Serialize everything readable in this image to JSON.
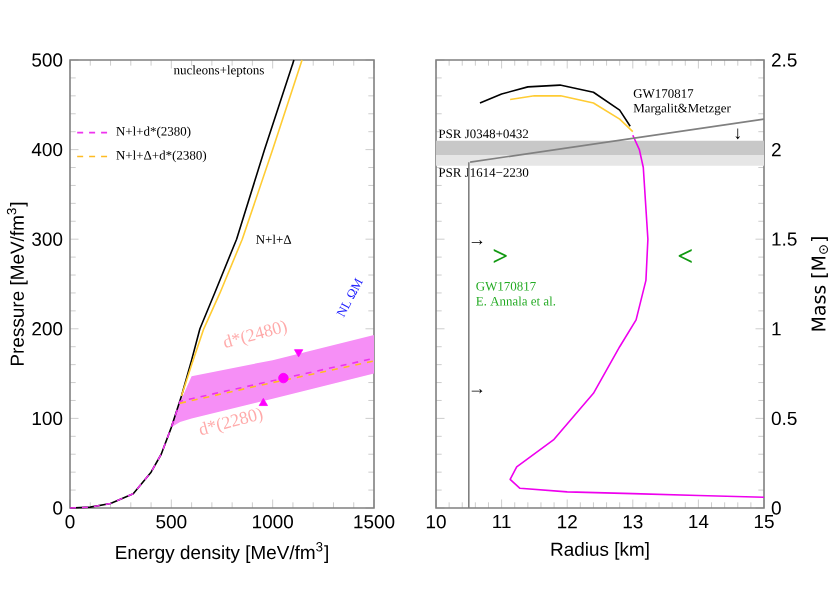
{
  "chart_data": [
    {
      "type": "line",
      "xlabel": "Energy density [MeV/fm$^{3}$]",
      "ylabel": "Pressure [MeV/fm$^{3}$]",
      "xlim": [
        0,
        1500
      ],
      "ylim": [
        0,
        500
      ],
      "xticks": [
        0,
        500,
        1000,
        1500
      ],
      "yticks": [
        0,
        100,
        200,
        300,
        400,
        500
      ],
      "legend": "top left",
      "series": [
        {
          "color": "#000000",
          "line_style": "solid",
          "x": [
            0,
            100,
            200,
            312,
            400,
            450,
            500,
            550,
            600,
            641,
            714,
            822,
            960,
            1105
          ],
          "values": [
            0,
            1,
            5,
            16,
            40,
            60,
            90,
            125,
            165,
            200,
            240,
            300,
            400,
            500
          ]
        },
        {
          "color": "#ffcc33",
          "line_style": "solid",
          "x": [
            550,
            600,
            660,
            740,
            850,
            1000,
            1145
          ],
          "values": [
            125,
            160,
            200,
            240,
            300,
            400,
            500
          ]
        },
        {
          "name": "N+l+d*(2380)",
          "color": "#ee33ee",
          "line_style": "dashed",
          "x": [
            0,
            100,
            200,
            312,
            400,
            450,
            500,
            543,
            600,
            1000,
            1500
          ],
          "values": [
            0,
            1,
            5,
            16,
            40,
            60,
            90,
            119,
            122,
            142,
            167
          ],
          "lower": [
            null,
            null,
            null,
            null,
            null,
            null,
            90,
            96,
            100,
            122,
            150
          ],
          "upper": [
            null,
            null,
            null,
            null,
            null,
            null,
            92,
            118,
            147,
            165,
            193
          ]
        },
        {
          "name": "N+l+Δ+d*(2380)",
          "color": "#ffbb22",
          "line_style": "dashed",
          "x": [
            543,
            1000,
            1500
          ],
          "values": [
            117,
            140,
            164
          ]
        },
        {
          "type": "scatter",
          "color": "#ff00ff",
          "marker": "circle",
          "x": [
            1053
          ],
          "values": [
            145
          ]
        },
        {
          "type": "scatter",
          "color": "#ff00ff",
          "marker": "triangle-down",
          "x": [
            1128
          ],
          "values": [
            174
          ]
        },
        {
          "type": "scatter",
          "color": "#ff00ff",
          "marker": "triangle",
          "x": [
            954
          ],
          "values": [
            117
          ]
        }
      ],
      "annotations": [
        "nucleons+leptons",
        "N+l+Δ",
        "d*(2480)",
        "d*(2280)",
        "NL ΩM"
      ]
    },
    {
      "type": "line",
      "xlabel": "Radius [km]",
      "ylabel": "Mass [M$_{⊙}$]",
      "xlim": [
        10,
        15
      ],
      "ylim": [
        0,
        2.5
      ],
      "xticks": [
        10,
        11,
        12,
        13,
        14,
        15
      ],
      "yticks": [
        0,
        0.5,
        1,
        1.5,
        2,
        2.5
      ],
      "bands": [
        {
          "axis": "y",
          "from": 1.97,
          "to": 2.05,
          "color": "#c8c8c8",
          "label": "PSR J0348+0432"
        },
        {
          "axis": "y",
          "from": 1.91,
          "to": 1.97,
          "color": "#e6e6e6",
          "label": "PSR J1614−2230"
        }
      ],
      "series": [
        {
          "color": "#000000",
          "line_style": "solid",
          "x": [
            10.67,
            11.0,
            11.4,
            11.89,
            12.4,
            12.8,
            12.96
          ],
          "values": [
            2.26,
            2.31,
            2.35,
            2.36,
            2.32,
            2.22,
            2.13
          ]
        },
        {
          "color": "#ffcc33",
          "line_style": "solid",
          "x": [
            11.13,
            11.5,
            11.9,
            12.4,
            12.8,
            13.0
          ],
          "values": [
            2.28,
            2.3,
            2.3,
            2.26,
            2.17,
            2.1
          ]
        },
        {
          "color": "#ee00ee",
          "line_style": "solid",
          "x": [
            13.0,
            13.1,
            13.16,
            13.23,
            13.2,
            13.05,
            12.8,
            12.4,
            11.79,
            11.23,
            11.13,
            11.28,
            12.0,
            13.0,
            14.0,
            15.0
          ],
          "values": [
            2.08,
            2.0,
            1.9,
            1.5,
            1.27,
            1.05,
            0.9,
            0.64,
            0.38,
            0.23,
            0.16,
            0.11,
            0.09,
            0.08,
            0.07,
            0.06
          ]
        },
        {
          "color": "#808080",
          "line_style": "solid",
          "x": [
            10.52,
            15
          ],
          "values": [
            1.93,
            2.17
          ]
        },
        {
          "color": "#808080",
          "line_style": "solid",
          "x": [
            10.5,
            10.5
          ],
          "values": [
            0,
            1.93
          ]
        }
      ],
      "annotations": [
        "GW170817",
        "Margalit&Metzger",
        "GW170817",
        "E. Annala et al.",
        ">",
        "<",
        "→",
        "→",
        "↓"
      ]
    }
  ]
}
